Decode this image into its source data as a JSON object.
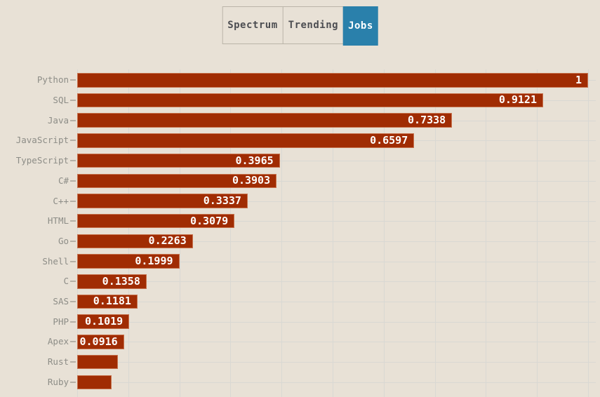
{
  "page": {
    "background_color": "#e8e1d6"
  },
  "tabs": {
    "items": [
      {
        "label": "Spectrum",
        "active": false
      },
      {
        "label": "Trending",
        "active": false
      },
      {
        "label": "Jobs",
        "active": true
      }
    ],
    "active_bg_color": "#2a80ab",
    "active_text_color": "#ffffff",
    "inactive_text_color": "#4d4e52",
    "border_color": "#bab4a8"
  },
  "chart_data": {
    "type": "bar",
    "orientation": "horizontal",
    "title": "",
    "xlabel": "",
    "ylabel": "",
    "xlim": [
      0,
      1
    ],
    "x_gridlines": [
      0,
      0.1,
      0.2,
      0.3,
      0.4,
      0.5,
      0.6,
      0.7,
      0.8,
      0.9,
      1.0
    ],
    "grid": true,
    "legend": false,
    "categories": [
      "Python",
      "SQL",
      "Java",
      "JavaScript",
      "TypeScript",
      "C#",
      "C++",
      "HTML",
      "Go",
      "Shell",
      "C",
      "SAS",
      "PHP",
      "Apex",
      "Rust",
      "Ruby"
    ],
    "values": [
      1,
      0.9121,
      0.7338,
      0.6597,
      0.3965,
      0.3903,
      0.3337,
      0.3079,
      0.2263,
      0.1999,
      0.1358,
      0.1181,
      0.1019,
      0.0916,
      0.079,
      0.067
    ],
    "bar_labels": [
      "1",
      "0.9121",
      "0.7338",
      "0.6597",
      "0.3965",
      "0.3903",
      "0.3337",
      "0.3079",
      "0.2263",
      "0.1999",
      "0.1358",
      "0.1181",
      "0.1019",
      "0.0916",
      "",
      ""
    ],
    "colors": {
      "bar": "#a02c03",
      "value_label": "#ffffff",
      "category_label": "#8d8d87",
      "gridline": "#d9d8d3",
      "tick": "#b5b0a6"
    }
  }
}
